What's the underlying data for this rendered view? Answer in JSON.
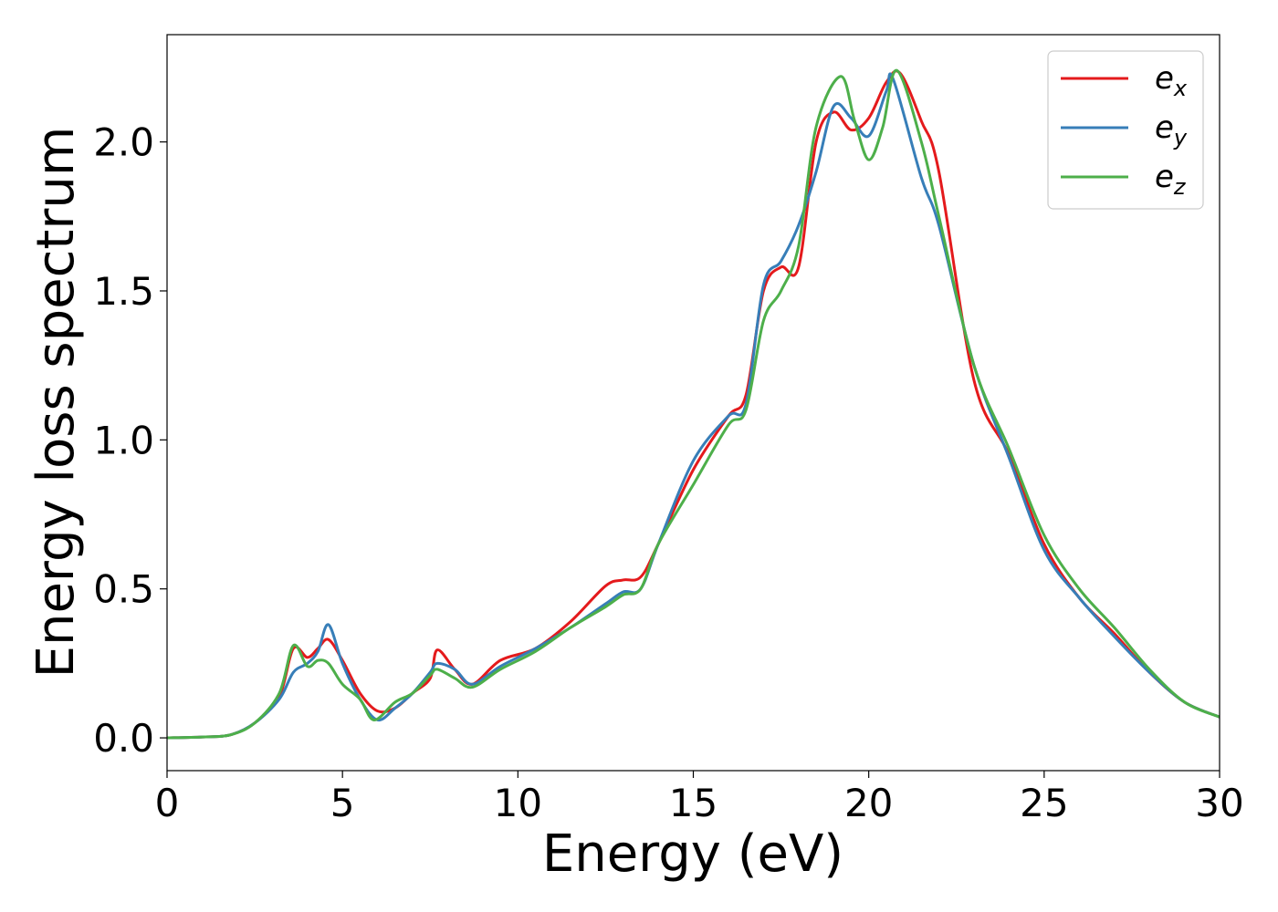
{
  "chart_data": {
    "type": "line",
    "title": "",
    "xlabel": "Energy (eV)",
    "ylabel": "Energy loss spectrum",
    "xlim": [
      0,
      30
    ],
    "ylim": [
      -0.11,
      2.36
    ],
    "xticks": [
      0,
      5,
      10,
      15,
      20,
      25,
      30
    ],
    "yticks": [
      0.0,
      0.5,
      1.0,
      1.5,
      2.0
    ],
    "xtick_labels": [
      "0",
      "5",
      "10",
      "15",
      "20",
      "25",
      "30"
    ],
    "ytick_labels": [
      "0.0",
      "0.5",
      "1.0",
      "1.5",
      "2.0"
    ],
    "grid": false,
    "legend_position": "top-right",
    "series": [
      {
        "name": "e_x",
        "legend_main": "e",
        "legend_sub": "x",
        "color": "#e41a1c",
        "x": [
          0,
          1,
          1.8,
          2.5,
          3.2,
          3.6,
          4.0,
          4.3,
          4.6,
          5.0,
          5.5,
          6.0,
          6.5,
          7.0,
          7.5,
          7.7,
          8.2,
          8.7,
          9.5,
          10.5,
          11.5,
          12.5,
          13.0,
          13.5,
          14.0,
          15.0,
          16.0,
          16.5,
          17.0,
          17.5,
          18.0,
          18.5,
          19.0,
          19.5,
          20.0,
          20.5,
          20.9,
          21.5,
          22.0,
          23.0,
          24.0,
          25.0,
          26.0,
          27.0,
          28.0,
          29.0,
          30.0
        ],
        "y": [
          0.0,
          0.003,
          0.01,
          0.05,
          0.14,
          0.3,
          0.27,
          0.3,
          0.33,
          0.26,
          0.15,
          0.09,
          0.1,
          0.15,
          0.2,
          0.295,
          0.23,
          0.18,
          0.26,
          0.3,
          0.39,
          0.51,
          0.53,
          0.54,
          0.65,
          0.9,
          1.08,
          1.15,
          1.5,
          1.58,
          1.58,
          2.0,
          2.1,
          2.04,
          2.08,
          2.2,
          2.23,
          2.07,
          1.9,
          1.2,
          0.95,
          0.65,
          0.47,
          0.35,
          0.22,
          0.12,
          0.07
        ]
      },
      {
        "name": "e_y",
        "legend_main": "e",
        "legend_sub": "y",
        "color": "#377eb8",
        "x": [
          0,
          1,
          1.8,
          2.5,
          3.2,
          3.6,
          4.0,
          4.3,
          4.6,
          5.0,
          5.5,
          6.0,
          6.5,
          7.0,
          7.5,
          7.7,
          8.2,
          8.7,
          9.5,
          10.5,
          11.5,
          12.5,
          13.0,
          13.5,
          14.0,
          15.0,
          16.0,
          16.5,
          17.0,
          17.5,
          18.0,
          18.5,
          19.0,
          19.5,
          20.0,
          20.5,
          20.7,
          21.5,
          22.0,
          23.0,
          24.0,
          25.0,
          26.0,
          27.0,
          28.0,
          29.0,
          30.0
        ],
        "y": [
          0.0,
          0.003,
          0.01,
          0.05,
          0.13,
          0.22,
          0.25,
          0.29,
          0.38,
          0.25,
          0.13,
          0.06,
          0.1,
          0.15,
          0.22,
          0.25,
          0.23,
          0.18,
          0.24,
          0.3,
          0.37,
          0.45,
          0.49,
          0.5,
          0.65,
          0.93,
          1.08,
          1.12,
          1.52,
          1.6,
          1.72,
          1.9,
          2.12,
          2.08,
          2.02,
          2.17,
          2.21,
          1.88,
          1.72,
          1.25,
          0.94,
          0.63,
          0.47,
          0.34,
          0.22,
          0.12,
          0.07
        ]
      },
      {
        "name": "e_z",
        "legend_main": "e",
        "legend_sub": "z",
        "color": "#4daf4a",
        "x": [
          0,
          1,
          1.8,
          2.5,
          3.2,
          3.6,
          4.0,
          4.3,
          4.6,
          5.0,
          5.5,
          5.9,
          6.5,
          7.0,
          7.5,
          7.7,
          8.2,
          8.7,
          9.5,
          10.5,
          11.5,
          12.5,
          13.0,
          13.5,
          14.0,
          15.0,
          16.0,
          16.5,
          17.0,
          17.5,
          18.0,
          18.5,
          19.2,
          19.6,
          20.0,
          20.4,
          20.8,
          21.5,
          22.0,
          23.0,
          24.0,
          25.0,
          26.0,
          27.0,
          28.0,
          29.0,
          30.0
        ],
        "y": [
          0.0,
          0.003,
          0.01,
          0.05,
          0.15,
          0.31,
          0.24,
          0.26,
          0.25,
          0.18,
          0.13,
          0.06,
          0.12,
          0.15,
          0.21,
          0.23,
          0.2,
          0.17,
          0.23,
          0.29,
          0.37,
          0.44,
          0.48,
          0.5,
          0.65,
          0.85,
          1.05,
          1.1,
          1.4,
          1.5,
          1.65,
          2.05,
          2.22,
          2.07,
          1.94,
          2.05,
          2.24,
          2.0,
          1.75,
          1.25,
          0.97,
          0.68,
          0.5,
          0.37,
          0.23,
          0.12,
          0.07
        ]
      }
    ]
  }
}
